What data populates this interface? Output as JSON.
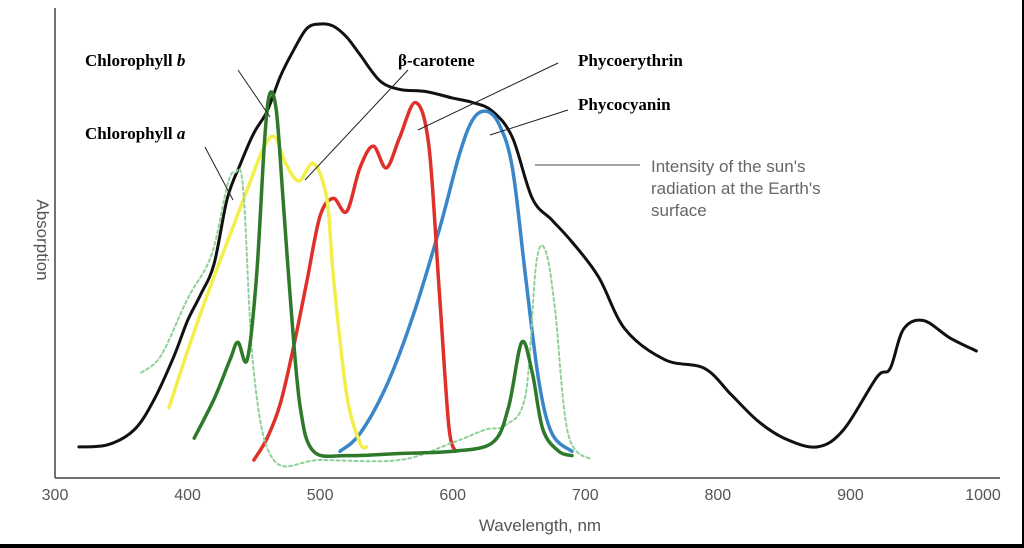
{
  "chart_data": {
    "type": "line",
    "title": "",
    "xlabel": "Wavelength, nm",
    "ylabel": "Absorption",
    "xlim": [
      300,
      1000
    ],
    "ylim": [
      0,
      1
    ],
    "x_ticks": [
      "300",
      "400",
      "500",
      "600",
      "700",
      "800",
      "900",
      "1000"
    ],
    "grid": false,
    "labels": {
      "chl_b": "Chlorophyll ",
      "chl_b_letter": "b",
      "chl_a": "Chlorophyll ",
      "chl_a_letter": "a",
      "carotene": "β-carotene",
      "phycoerythrin": "Phycoerythrin",
      "phycocyanin": "Phycocyanin",
      "sun_line1": "Intensity of the sun's",
      "sun_line2": "radiation at the Earth's",
      "sun_line3": "surface"
    },
    "series": [
      {
        "key": "sun",
        "color": "#111111",
        "dashed": false,
        "width": 3,
        "points": [
          [
            318,
            0.03
          ],
          [
            340,
            0.035
          ],
          [
            360,
            0.07
          ],
          [
            375,
            0.14
          ],
          [
            390,
            0.24
          ],
          [
            400,
            0.32
          ],
          [
            410,
            0.38
          ],
          [
            420,
            0.45
          ],
          [
            430,
            0.6
          ],
          [
            440,
            0.68
          ],
          [
            450,
            0.75
          ],
          [
            460,
            0.8
          ],
          [
            470,
            0.88
          ],
          [
            480,
            0.94
          ],
          [
            490,
            0.99
          ],
          [
            500,
            1.0
          ],
          [
            510,
            0.995
          ],
          [
            520,
            0.97
          ],
          [
            530,
            0.93
          ],
          [
            545,
            0.87
          ],
          [
            560,
            0.85
          ],
          [
            580,
            0.845
          ],
          [
            600,
            0.83
          ],
          [
            615,
            0.82
          ],
          [
            630,
            0.8
          ],
          [
            645,
            0.74
          ],
          [
            660,
            0.6
          ],
          [
            675,
            0.55
          ],
          [
            690,
            0.5
          ],
          [
            710,
            0.42
          ],
          [
            730,
            0.3
          ],
          [
            760,
            0.23
          ],
          [
            790,
            0.21
          ],
          [
            810,
            0.15
          ],
          [
            830,
            0.09
          ],
          [
            850,
            0.05
          ],
          [
            875,
            0.03
          ],
          [
            895,
            0.07
          ],
          [
            920,
            0.19
          ],
          [
            930,
            0.21
          ],
          [
            940,
            0.3
          ],
          [
            955,
            0.32
          ],
          [
            975,
            0.28
          ],
          [
            995,
            0.25
          ]
        ]
      },
      {
        "key": "phycocyanin",
        "color": "#3a86c8",
        "dashed": false,
        "width": 3.5,
        "points": [
          [
            515,
            0.02
          ],
          [
            530,
            0.06
          ],
          [
            550,
            0.17
          ],
          [
            570,
            0.33
          ],
          [
            590,
            0.53
          ],
          [
            605,
            0.7
          ],
          [
            615,
            0.78
          ],
          [
            625,
            0.8
          ],
          [
            635,
            0.77
          ],
          [
            645,
            0.67
          ],
          [
            655,
            0.42
          ],
          [
            665,
            0.18
          ],
          [
            675,
            0.06
          ],
          [
            690,
            0.02
          ]
        ]
      },
      {
        "key": "phycoerythrin",
        "color": "#e0302a",
        "dashed": false,
        "width": 3.5,
        "points": [
          [
            450,
            0.0
          ],
          [
            460,
            0.05
          ],
          [
            470,
            0.13
          ],
          [
            480,
            0.26
          ],
          [
            490,
            0.41
          ],
          [
            500,
            0.56
          ],
          [
            510,
            0.6
          ],
          [
            520,
            0.57
          ],
          [
            530,
            0.67
          ],
          [
            540,
            0.72
          ],
          [
            550,
            0.67
          ],
          [
            560,
            0.74
          ],
          [
            572,
            0.82
          ],
          [
            582,
            0.72
          ],
          [
            590,
            0.38
          ],
          [
            597,
            0.08
          ],
          [
            602,
            0.02
          ]
        ]
      },
      {
        "key": "carotene",
        "color": "#f3ef4a",
        "dashed": false,
        "width": 3.5,
        "points": [
          [
            386,
            0.12
          ],
          [
            400,
            0.25
          ],
          [
            415,
            0.38
          ],
          [
            430,
            0.5
          ],
          [
            445,
            0.62
          ],
          [
            458,
            0.72
          ],
          [
            466,
            0.74
          ],
          [
            474,
            0.68
          ],
          [
            484,
            0.64
          ],
          [
            495,
            0.68
          ],
          [
            505,
            0.6
          ],
          [
            510,
            0.42
          ],
          [
            520,
            0.15
          ],
          [
            530,
            0.04
          ],
          [
            535,
            0.03
          ]
        ]
      },
      {
        "key": "chl_a",
        "color": "#8fd19a",
        "dashed": true,
        "width": 2,
        "points": [
          [
            365,
            0.2
          ],
          [
            380,
            0.24
          ],
          [
            400,
            0.37
          ],
          [
            418,
            0.47
          ],
          [
            430,
            0.63
          ],
          [
            436,
            0.66
          ],
          [
            442,
            0.62
          ],
          [
            450,
            0.2
          ],
          [
            465,
            0.0
          ],
          [
            500,
            0.0
          ],
          [
            560,
            0.0
          ],
          [
            600,
            0.04
          ],
          [
            625,
            0.07
          ],
          [
            640,
            0.08
          ],
          [
            655,
            0.15
          ],
          [
            663,
            0.45
          ],
          [
            670,
            0.48
          ],
          [
            677,
            0.35
          ],
          [
            687,
            0.06
          ],
          [
            705,
            0.0
          ]
        ]
      },
      {
        "key": "chl_b",
        "color": "#2e7a2a",
        "dashed": false,
        "width": 3.5,
        "points": [
          [
            405,
            0.05
          ],
          [
            420,
            0.14
          ],
          [
            432,
            0.23
          ],
          [
            438,
            0.27
          ],
          [
            445,
            0.23
          ],
          [
            452,
            0.42
          ],
          [
            458,
            0.73
          ],
          [
            462,
            0.84
          ],
          [
            467,
            0.8
          ],
          [
            472,
            0.6
          ],
          [
            478,
            0.35
          ],
          [
            485,
            0.12
          ],
          [
            495,
            0.02
          ],
          [
            520,
            0.01
          ],
          [
            560,
            0.015
          ],
          [
            600,
            0.02
          ],
          [
            630,
            0.04
          ],
          [
            642,
            0.12
          ],
          [
            652,
            0.27
          ],
          [
            660,
            0.2
          ],
          [
            668,
            0.07
          ],
          [
            680,
            0.02
          ],
          [
            690,
            0.01
          ]
        ]
      }
    ]
  }
}
